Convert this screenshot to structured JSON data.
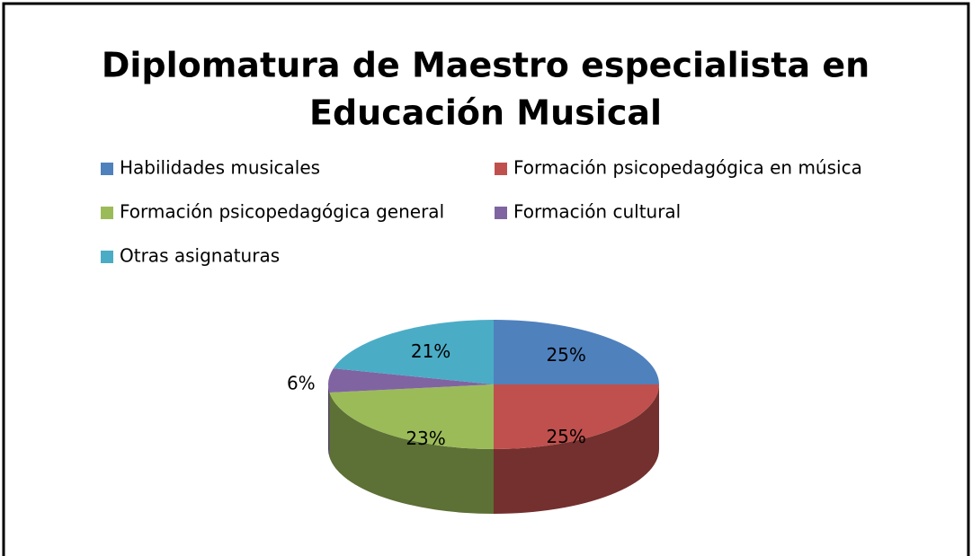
{
  "chart_data": {
    "type": "pie",
    "title": [
      "Diplomatura de Maestro especialista en",
      "Educación Musical"
    ],
    "categories": [
      "Habilidades musicales",
      "Formación psicopedagógica en música",
      "Formación psicopedagógica general",
      "Formación cultural",
      "Otras asignaturas"
    ],
    "values": [
      25,
      25,
      23,
      6,
      21
    ],
    "value_labels": [
      "25%",
      "25%",
      "23%",
      "6%",
      "21%"
    ],
    "colors": [
      "#4f81bd",
      "#c0504d",
      "#9bbb59",
      "#8064a2",
      "#4bacc6"
    ],
    "legend": "top"
  }
}
